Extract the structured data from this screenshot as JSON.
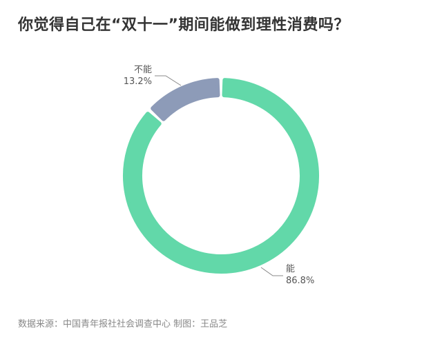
{
  "chart_data": {
    "type": "pie",
    "title": "你觉得自己在“双十一”期间能做到理性消费吗？",
    "donut": true,
    "slices": [
      {
        "label": "能",
        "value": 86.8,
        "value_label": "86.8%",
        "color": "#62d8a9"
      },
      {
        "label": "不能",
        "value": 13.2,
        "value_label": "13.2%",
        "color": "#8d9bb8"
      }
    ]
  },
  "footer": {
    "source": "数据来源：中国青年报社社会调查中心 制图：王品芝"
  }
}
